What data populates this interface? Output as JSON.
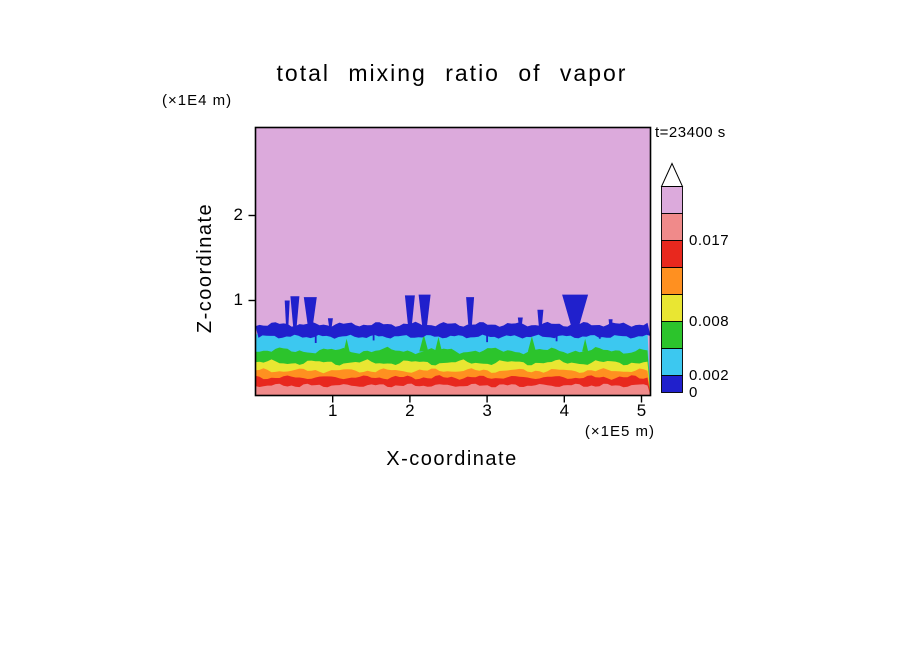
{
  "title": "total mixing ratio of vapor",
  "time_label": "t=23400 s",
  "axes": {
    "xlabel": "X-coordinate",
    "ylabel": "Z-coordinate",
    "x_unit": "(×1E5 m)",
    "y_unit": "(×1E4 m)",
    "x_ticks": [
      "1",
      "2",
      "3",
      "4",
      "5"
    ],
    "y_ticks": [
      "1",
      "2"
    ]
  },
  "colorbar": {
    "labels": [
      {
        "text": "0.017",
        "boundary": 6
      },
      {
        "text": "0.008",
        "boundary": 3
      },
      {
        "text": "0.002",
        "boundary": 1
      },
      {
        "text": "0",
        "boundary": 0
      }
    ],
    "colors_bottom_to_top": [
      "#2020cc",
      "#3cc8f0",
      "#2cc42c",
      "#e9e632",
      "#ff9020",
      "#e8281e",
      "#f08a8a",
      "#dcaadc"
    ],
    "arrow_color": "#ffffff"
  },
  "chart_data": {
    "type": "filled_contour",
    "title": "total mixing ratio of vapor",
    "xlabel": "X-coordinate",
    "ylabel": "Z-coordinate",
    "x_unit_scale": "(×1E5 m)",
    "y_unit_scale": "(×1E4 m)",
    "time": "t=23400 s",
    "x_ticks": [
      1,
      2,
      3,
      4,
      5
    ],
    "y_ticks": [
      1,
      2
    ],
    "x_range": [
      0,
      5.1
    ],
    "z_range": [
      0,
      3.1
    ],
    "contour_levels": [
      0,
      0.002,
      0.005,
      0.008,
      0.011,
      0.014,
      0.017,
      0.02,
      0.023
    ],
    "labeled_levels": [
      0,
      0.002,
      0.008,
      0.017
    ],
    "colors": {
      "over_range_fill": "#dcaadc",
      "plume_layer": "#2020cc"
    },
    "bands_render_order": [
      {
        "range": [
          0.002,
          0.005
        ],
        "color": "#3cc8f0",
        "z_top_mean": 0.635,
        "amp": 2.4
      },
      {
        "range": [
          0.005,
          0.008
        ],
        "color": "#2cc42c",
        "z_top_mean": 0.41,
        "amp": 2.0
      },
      {
        "range": [
          0.008,
          0.011
        ],
        "color": "#e9e632",
        "z_top_mean": 0.27,
        "amp": 1.7
      },
      {
        "range": [
          0.011,
          0.014
        ],
        "color": "#ff9020",
        "z_top_mean": 0.175,
        "amp": 1.4
      },
      {
        "range": [
          0.014,
          0.017
        ],
        "color": "#e8281e",
        "z_top_mean": 0.095,
        "amp": 1.3
      },
      {
        "range": [
          0.017,
          0.02
        ],
        "color": "#f08a8a",
        "z_top_mean": 0.0,
        "amp": 1.2
      }
    ],
    "inversion_band": {
      "range": [
        0,
        0.002
      ],
      "color": "#2020cc",
      "z_top_mean": 0.72,
      "z_bottom_mean": 0.575
    },
    "plumes": [
      {
        "x": 0.41,
        "z_top": 1.0,
        "top_w": 5,
        "stem_w": 2
      },
      {
        "x": 0.51,
        "z_top": 1.05,
        "top_w": 9,
        "stem_w": 3
      },
      {
        "x": 0.71,
        "z_top": 1.04,
        "top_w": 13,
        "stem_w": 4
      },
      {
        "x": 0.97,
        "z_top": 0.79,
        "top_w": 5,
        "stem_w": 2
      },
      {
        "x": 2.0,
        "z_top": 1.06,
        "top_w": 10,
        "stem_w": 3
      },
      {
        "x": 2.19,
        "z_top": 1.07,
        "top_w": 12,
        "stem_w": 4
      },
      {
        "x": 2.78,
        "z_top": 1.04,
        "top_w": 8,
        "stem_w": 3
      },
      {
        "x": 3.43,
        "z_top": 0.8,
        "top_w": 5,
        "stem_w": 2
      },
      {
        "x": 3.69,
        "z_top": 0.89,
        "top_w": 6,
        "stem_w": 2.5
      },
      {
        "x": 4.14,
        "z_top": 1.07,
        "top_w": 26,
        "stem_w": 6
      },
      {
        "x": 4.6,
        "z_top": 0.78,
        "top_w": 4,
        "stem_w": 2
      }
    ],
    "green_spikes": [
      {
        "x": 1.18,
        "z_top": 0.55,
        "w": 6
      },
      {
        "x": 2.18,
        "z_top": 0.6,
        "w": 9
      },
      {
        "x": 2.37,
        "z_top": 0.57,
        "w": 7
      },
      {
        "x": 3.58,
        "z_top": 0.58,
        "w": 8
      },
      {
        "x": 4.27,
        "z_top": 0.55,
        "w": 6
      }
    ],
    "drips": [
      {
        "x": 0.78,
        "z_bot": 0.5
      },
      {
        "x": 1.53,
        "z_bot": 0.53
      },
      {
        "x": 3.0,
        "z_bot": 0.51
      },
      {
        "x": 3.9,
        "z_bot": 0.52
      },
      {
        "x": 4.46,
        "z_bot": 0.55
      }
    ]
  }
}
